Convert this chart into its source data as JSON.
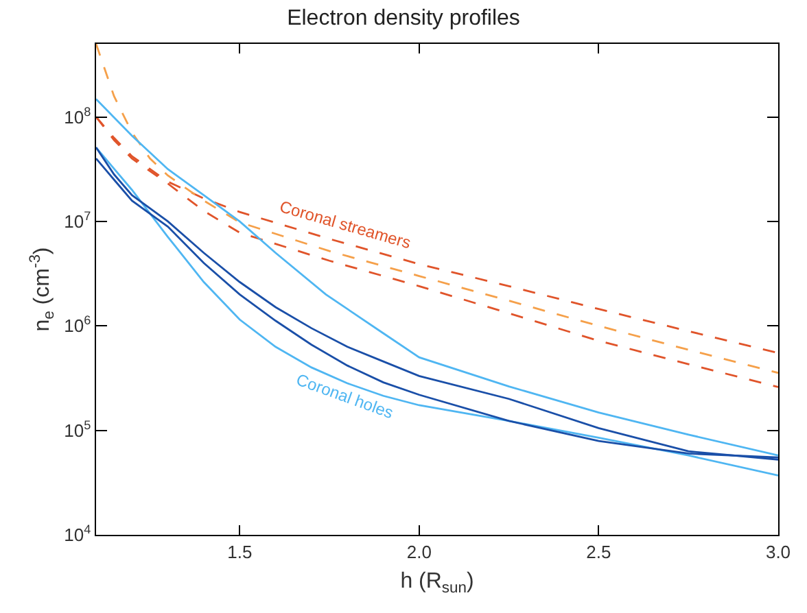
{
  "chart_data": {
    "type": "line",
    "title": "Electron density profiles",
    "xlabel": "h (R$_{sun}$)",
    "ylabel": "n$_{e}$ (cm$^{-3}$)",
    "log": "y",
    "grid": false,
    "line_style": "solid",
    "marker": "none",
    "xlim": [
      1.1,
      3.0
    ],
    "ylim": [
      10000,
      500000000
    ],
    "xticks": [
      1.5,
      {
        "value": 2.0,
        "label": "2.0"
      },
      2.5,
      {
        "value": 3.0,
        "label": "3.0"
      }
    ],
    "yticks": [
      {
        "value": 10000,
        "label": "10$^{4}$"
      },
      {
        "value": 100000,
        "label": "10$^{5}$"
      },
      {
        "value": 1000000,
        "label": "10$^{6}$"
      },
      {
        "value": 10000000,
        "label": "10$^{7}$"
      },
      {
        "value": 100000000,
        "label": "10$^{8}$"
      }
    ],
    "series": [
      {
        "color": "#e0542a",
        "line_style": "dashed",
        "x": [
          1.1,
          1.15,
          1.2,
          1.3,
          1.4,
          1.5,
          1.75,
          2.0,
          2.25,
          2.5,
          2.75,
          3.0
        ],
        "values": [
          100000000.0,
          63000000.0,
          42000000.0,
          24000000.0,
          16600000.0,
          12300000.0,
          6800000.0,
          3900000.0,
          2400000.0,
          1450000.0,
          890000.0,
          550000.0
        ]
      },
      {
        "color": "#f5a04a",
        "line_style": "dashed",
        "x": [
          1.1,
          1.15,
          1.2,
          1.25,
          1.3,
          1.4,
          1.5,
          1.75,
          2.0,
          2.25,
          2.5,
          2.75,
          3.0
        ],
        "values": [
          500000000.0,
          158000000.0,
          71000000.0,
          40000000.0,
          27500000.0,
          15800000.0,
          9800000.0,
          5200000.0,
          3000000.0,
          1740000.0,
          1000000.0,
          590000.0,
          355000.0
        ]
      },
      {
        "color": "#e0542a",
        "line_style": "dashed",
        "x": [
          1.1,
          1.15,
          1.2,
          1.3,
          1.4,
          1.5,
          1.75,
          2.0,
          2.25,
          2.5,
          2.75,
          3.0
        ],
        "values": [
          100000000.0,
          60000000.0,
          40000000.0,
          23000000.0,
          12600000.0,
          7800000.0,
          4200000.0,
          2400000.0,
          1320000.0,
          720000.0,
          430000.0,
          260000.0
        ]
      },
      {
        "color": "#4fb6f2",
        "x": [
          1.1,
          1.2,
          1.3,
          1.4,
          1.5,
          1.6,
          1.74,
          1.9,
          2.0,
          2.25,
          2.5,
          2.75,
          3.0
        ],
        "values": [
          148000000.0,
          66000000.0,
          31600000.0,
          17800000.0,
          10000000.0,
          5000000.0,
          2000000.0,
          850000.0,
          500000.0,
          263000.0,
          148000.0,
          91000.0,
          57500.0
        ]
      },
      {
        "color": "#4fb6f2",
        "x": [
          1.1,
          1.2,
          1.3,
          1.4,
          1.5,
          1.6,
          1.7,
          1.8,
          1.9,
          2.0,
          2.25,
          2.5,
          2.75,
          3.0
        ],
        "values": [
          51000000.0,
          20000000.0,
          7100000.0,
          2630000.0,
          1150000.0,
          630000.0,
          400000.0,
          282000.0,
          214000.0,
          174000.0,
          123000.0,
          85000.0,
          57500.0,
          37000.0
        ]
      },
      {
        "color": "#1a4fa8",
        "x": [
          1.1,
          1.15,
          1.2,
          1.3,
          1.4,
          1.5,
          1.6,
          1.7,
          1.8,
          1.9,
          2.0,
          2.25,
          2.5,
          2.75,
          3.0
        ],
        "values": [
          51000000.0,
          28200000.0,
          17800000.0,
          10000000.0,
          5000000.0,
          2630000.0,
          1510000.0,
          950000.0,
          630000.0,
          457000.0,
          331000.0,
          200000.0,
          105000.0,
          63000.0,
          52500.0
        ]
      },
      {
        "color": "#1a4fa8",
        "x": [
          1.1,
          1.15,
          1.2,
          1.3,
          1.4,
          1.5,
          1.6,
          1.7,
          1.8,
          1.9,
          2.0,
          2.25,
          2.5,
          2.75,
          3.0
        ],
        "values": [
          40000000.0,
          25100000.0,
          15800000.0,
          8900000.0,
          4000000.0,
          2000000.0,
          1120000.0,
          660000.0,
          417000.0,
          288000.0,
          219000.0,
          123000.0,
          79000.0,
          60000.0,
          55000.0
        ]
      }
    ],
    "annotations": [
      "Coronal streamers",
      "Coronal holes"
    ]
  }
}
